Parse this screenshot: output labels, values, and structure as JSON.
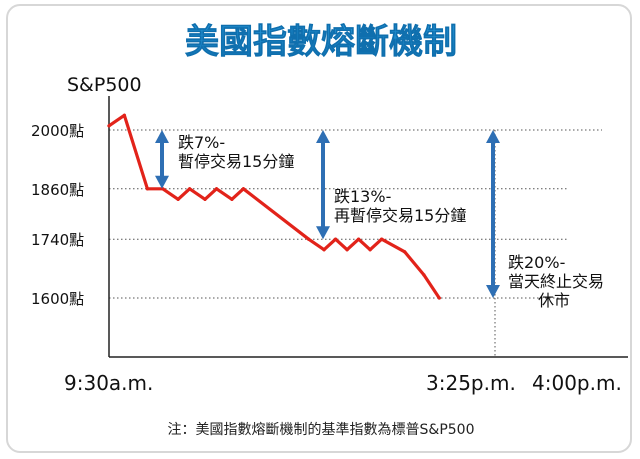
{
  "chart_data": {
    "type": "line",
    "title": "美國指數熔斷機制",
    "ylabel": "S&P500",
    "ylim": [
      1440,
      2080
    ],
    "y_ticks": [
      {
        "value": 2000,
        "label": "2000點"
      },
      {
        "value": 1860,
        "label": "1860點"
      },
      {
        "value": 1740,
        "label": "1740點"
      },
      {
        "value": 1600,
        "label": "1600點"
      }
    ],
    "x_ticks": [
      "9:30a.m.",
      "3:25p.m.",
      "4:00p.m."
    ],
    "series": [
      {
        "values": [
          {
            "x": 0,
            "y": 2010
          },
          {
            "x": 0.04,
            "y": 2035
          },
          {
            "x": 0.1,
            "y": 1860
          },
          {
            "x": 0.14,
            "y": 1860
          },
          {
            "x": 0.18,
            "y": 1835
          },
          {
            "x": 0.21,
            "y": 1860
          },
          {
            "x": 0.25,
            "y": 1835
          },
          {
            "x": 0.28,
            "y": 1860
          },
          {
            "x": 0.32,
            "y": 1835
          },
          {
            "x": 0.35,
            "y": 1860
          },
          {
            "x": 0.52,
            "y": 1740
          },
          {
            "x": 0.56,
            "y": 1715
          },
          {
            "x": 0.59,
            "y": 1740
          },
          {
            "x": 0.62,
            "y": 1715
          },
          {
            "x": 0.65,
            "y": 1740
          },
          {
            "x": 0.68,
            "y": 1715
          },
          {
            "x": 0.71,
            "y": 1740
          },
          {
            "x": 0.77,
            "y": 1710
          },
          {
            "x": 0.82,
            "y": 1655
          },
          {
            "x": 0.86,
            "y": 1600
          }
        ]
      }
    ],
    "annotations": [
      {
        "lines": [
          "跌7%-",
          "暫停交易15分鐘"
        ],
        "from": 2000,
        "to": 1860
      },
      {
        "lines": [
          "跌13%-",
          "再暫停交易15分鐘"
        ],
        "from": 2000,
        "to": 1740
      },
      {
        "lines": [
          "跌20%-",
          "當天終止交易",
          "休市"
        ],
        "from": 2000,
        "to": 1600
      }
    ],
    "note": "注：美國指數熔斷機制的基準指數為標普S&P500",
    "colors": {
      "line": "#e2231a",
      "arrow": "#2e6fb4",
      "title": "#1a86c8",
      "grid": "#555555"
    },
    "grid": "dotted horizontal reference lines"
  }
}
